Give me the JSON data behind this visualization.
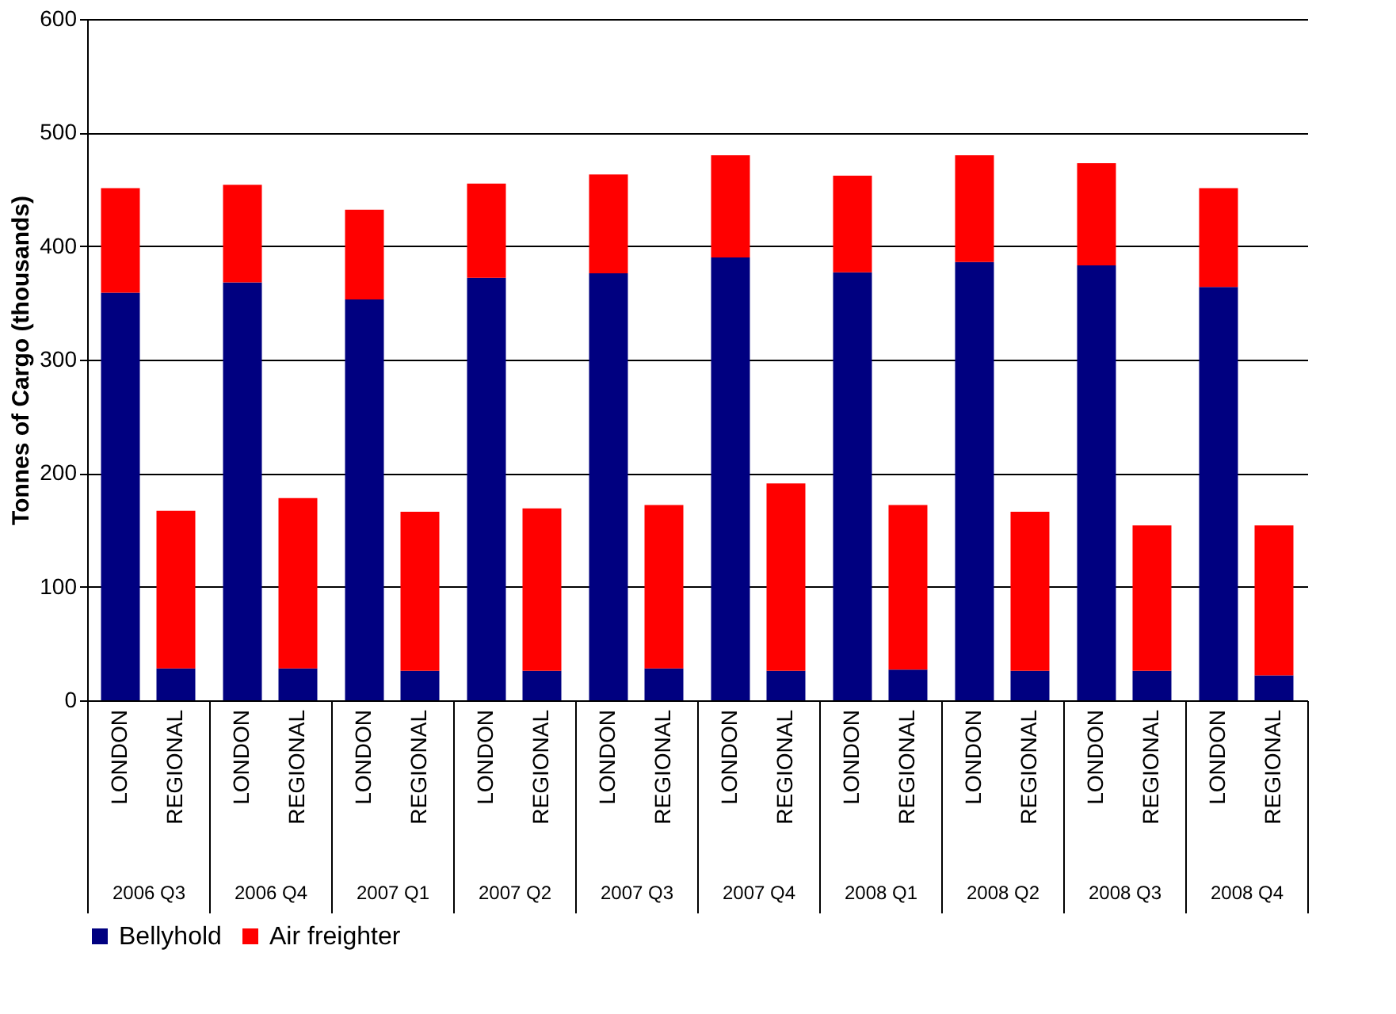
{
  "chart_data": {
    "type": "bar",
    "stacked": true,
    "ylabel": "Tonnes of Cargo (thousands)",
    "categories": [
      "LONDON",
      "REGIONAL",
      "LONDON",
      "REGIONAL",
      "LONDON",
      "REGIONAL",
      "LONDON",
      "REGIONAL",
      "LONDON",
      "REGIONAL",
      "LONDON",
      "REGIONAL",
      "LONDON",
      "REGIONAL",
      "LONDON",
      "REGIONAL",
      "LONDON",
      "REGIONAL",
      "LONDON",
      "REGIONAL"
    ],
    "annotations": [
      "2006 Q3",
      "2006 Q4",
      "2007 Q1",
      "2007 Q2",
      "2007 Q3",
      "2007 Q4",
      "2008 Q1",
      "2008 Q2",
      "2008 Q3",
      "2008 Q4"
    ],
    "series": [
      {
        "name": "Bellyhold",
        "color": "#000080",
        "values": [
          359,
          28,
          368,
          28,
          353,
          26,
          372,
          26,
          376,
          28,
          390,
          26,
          377,
          27,
          386,
          26,
          383,
          26,
          364,
          22
        ]
      },
      {
        "name": "Air freighter",
        "color": "#ff0000",
        "values": [
          92,
          139,
          86,
          150,
          79,
          140,
          83,
          143,
          87,
          144,
          90,
          165,
          85,
          145,
          94,
          140,
          90,
          128,
          87,
          132
        ]
      }
    ],
    "ylim": [
      0,
      600
    ],
    "yticks": [
      0,
      100,
      200,
      300,
      400,
      500,
      600
    ],
    "grid": "y",
    "legend": "bottom"
  }
}
